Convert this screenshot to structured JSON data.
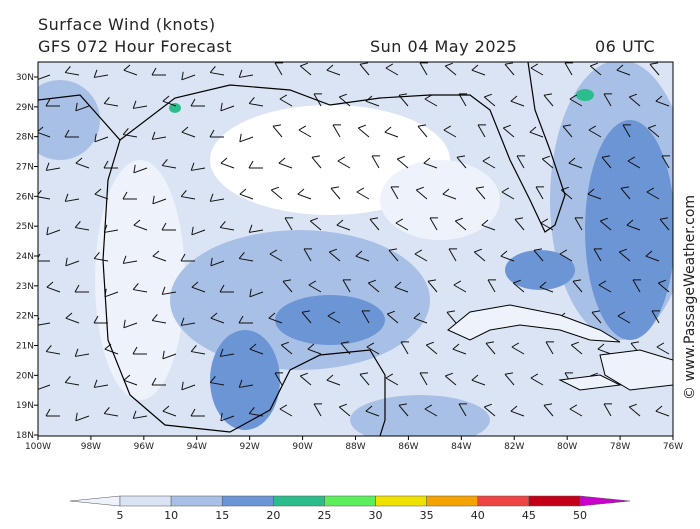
{
  "header": {
    "title": "Surface Wind (knots)",
    "subtitle": "GFS 072 Hour Forecast",
    "date": "Sun 04 May 2025",
    "time": "06 UTC"
  },
  "map": {
    "lat_labels": [
      "30N",
      "29N",
      "28N",
      "27N",
      "26N",
      "25N",
      "24N",
      "23N",
      "22N",
      "21N",
      "20N",
      "19N",
      "18N"
    ],
    "lon_labels": [
      "100W",
      "98W",
      "96W",
      "94W",
      "92W",
      "90W",
      "88W",
      "86W",
      "84W",
      "82W",
      "80W",
      "78W",
      "76W"
    ]
  },
  "colorbar": {
    "ticks": [
      5,
      10,
      15,
      20,
      25,
      30,
      35,
      40,
      45,
      50
    ],
    "colors": [
      "#eef2fa",
      "#d9e3f4",
      "#a9c0e6",
      "#6c95d5",
      "#2dbd8c",
      "#5cee5c",
      "#f0e200",
      "#f4a300",
      "#ee4444",
      "#c40018",
      "#cc00cc"
    ]
  },
  "credit": "© www.PassageWeather.com"
}
